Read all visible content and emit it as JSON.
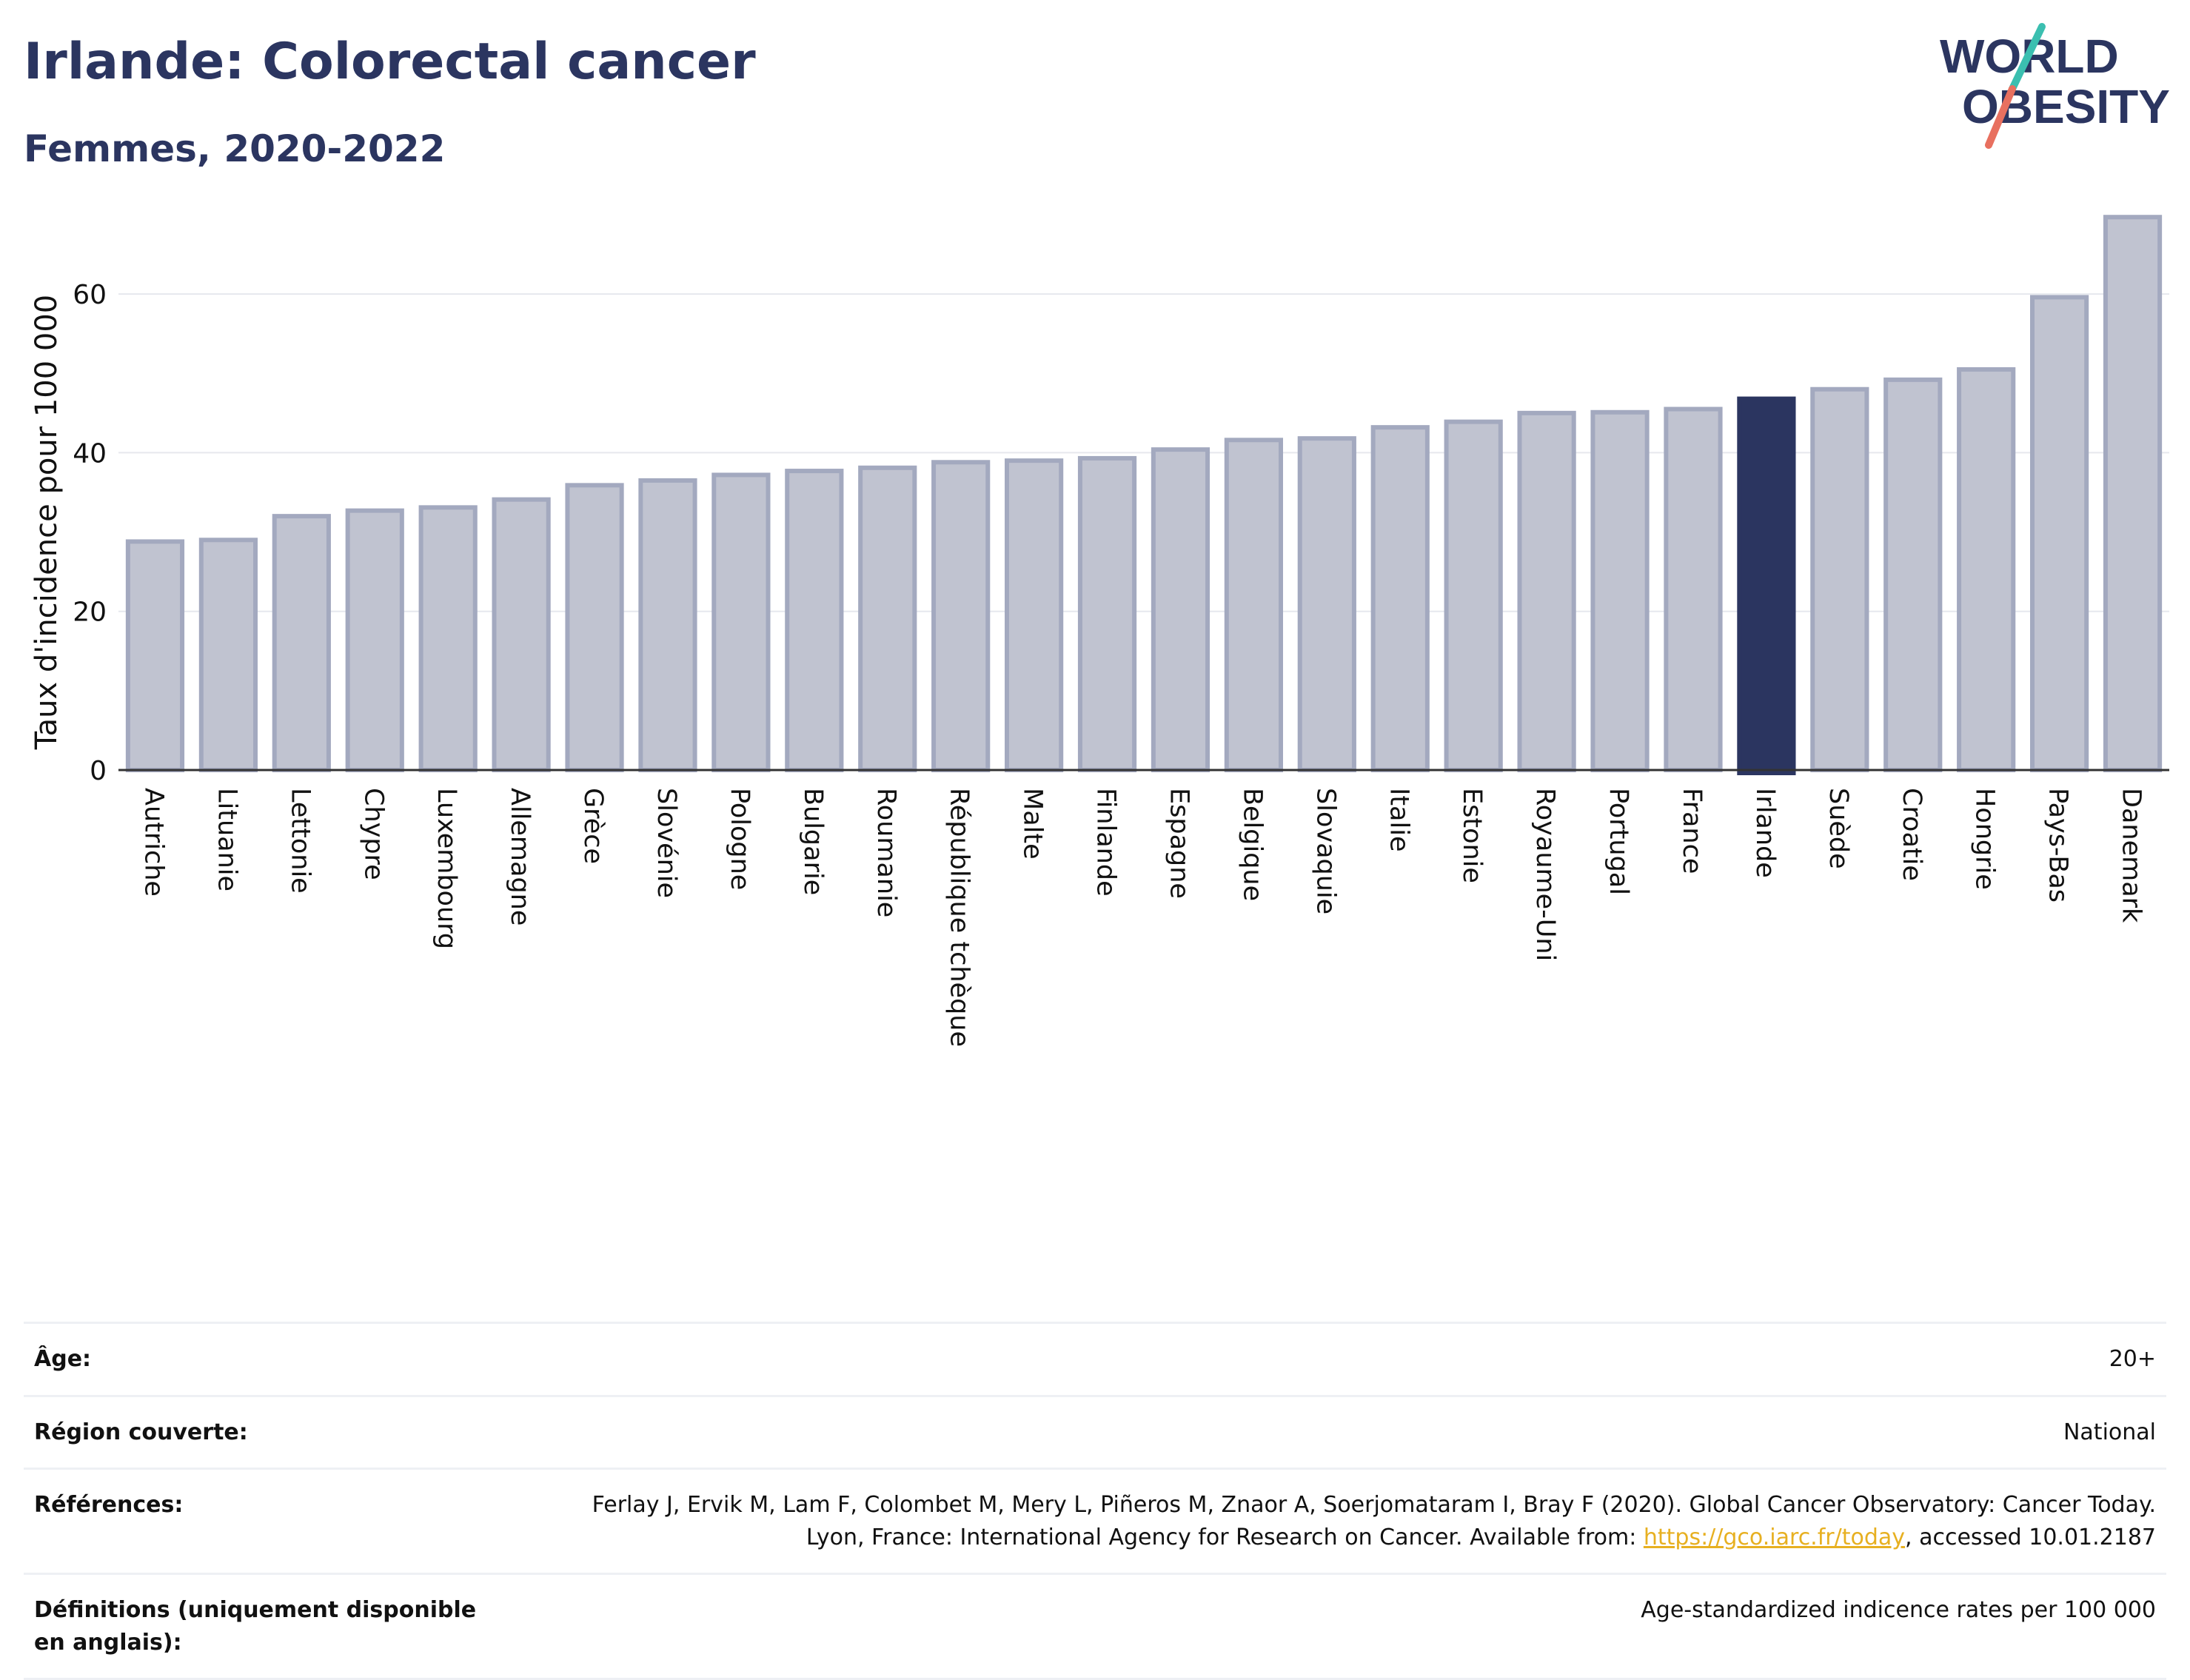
{
  "header": {
    "title": "Irlande: Colorectal cancer",
    "subtitle": "Femmes, 2020-2022"
  },
  "logo": {
    "line1": "WORLD",
    "line2": "OBESITY",
    "colors": {
      "text": "#2b3560",
      "slash_top": "#3bbfb0",
      "slash_bottom": "#e8705f"
    }
  },
  "chart_data": {
    "type": "bar",
    "title": "Irlande: Colorectal cancer",
    "subtitle": "Femmes, 2020-2022",
    "ylabel": "Taux d'incidence pour 100 000",
    "xlabel": "",
    "ylim": [
      0,
      70
    ],
    "yticks": [
      0,
      20,
      40,
      60
    ],
    "grid": true,
    "highlight": "Irlande",
    "colors": {
      "bar": "#c0c3d0",
      "bar_edge": "#a3a9bf",
      "highlight": "#2b3560",
      "grid": "#e6e8ee",
      "axis": "#333333"
    },
    "categories": [
      "Autriche",
      "Lituanie",
      "Lettonie",
      "Chypre",
      "Luxembourg",
      "Allemagne",
      "Grèce",
      "Slovénie",
      "Pologne",
      "Bulgarie",
      "Roumanie",
      "République tchèque",
      "Malte",
      "Finlande",
      "Espagne",
      "Belgique",
      "Slovaquie",
      "Italie",
      "Estonie",
      "Royaume-Uni",
      "Portugal",
      "France",
      "Irlande",
      "Suède",
      "Croatie",
      "Hongrie",
      "Pays-Bas",
      "Danemark"
    ],
    "values": [
      28.8,
      29.0,
      32.0,
      32.7,
      33.1,
      34.1,
      35.9,
      36.5,
      37.2,
      37.7,
      38.1,
      38.8,
      39.0,
      39.3,
      40.4,
      41.6,
      41.8,
      43.2,
      43.9,
      45.0,
      45.1,
      45.5,
      46.8,
      48.0,
      49.2,
      50.5,
      59.6,
      69.7
    ]
  },
  "meta": [
    {
      "key": "Âge:",
      "value": "20+"
    },
    {
      "key": "Région couverte:",
      "value": "National"
    },
    {
      "key": "Références:",
      "value_pre": "Ferlay J, Ervik M, Lam F, Colombet M, Mery L, Piñeros M, Znaor A, Soerjomataram I, Bray F (2020). Global Cancer Observatory: Cancer Today. Lyon, France: International Agency for Research on Cancer. Available from: ",
      "link": "https://gco.iarc.fr/today",
      "value_post": ", accessed 10.01.2187"
    },
    {
      "key": "Définitions (uniquement disponible en anglais):",
      "value": "Age-standardized indicence rates per 100 000"
    }
  ]
}
